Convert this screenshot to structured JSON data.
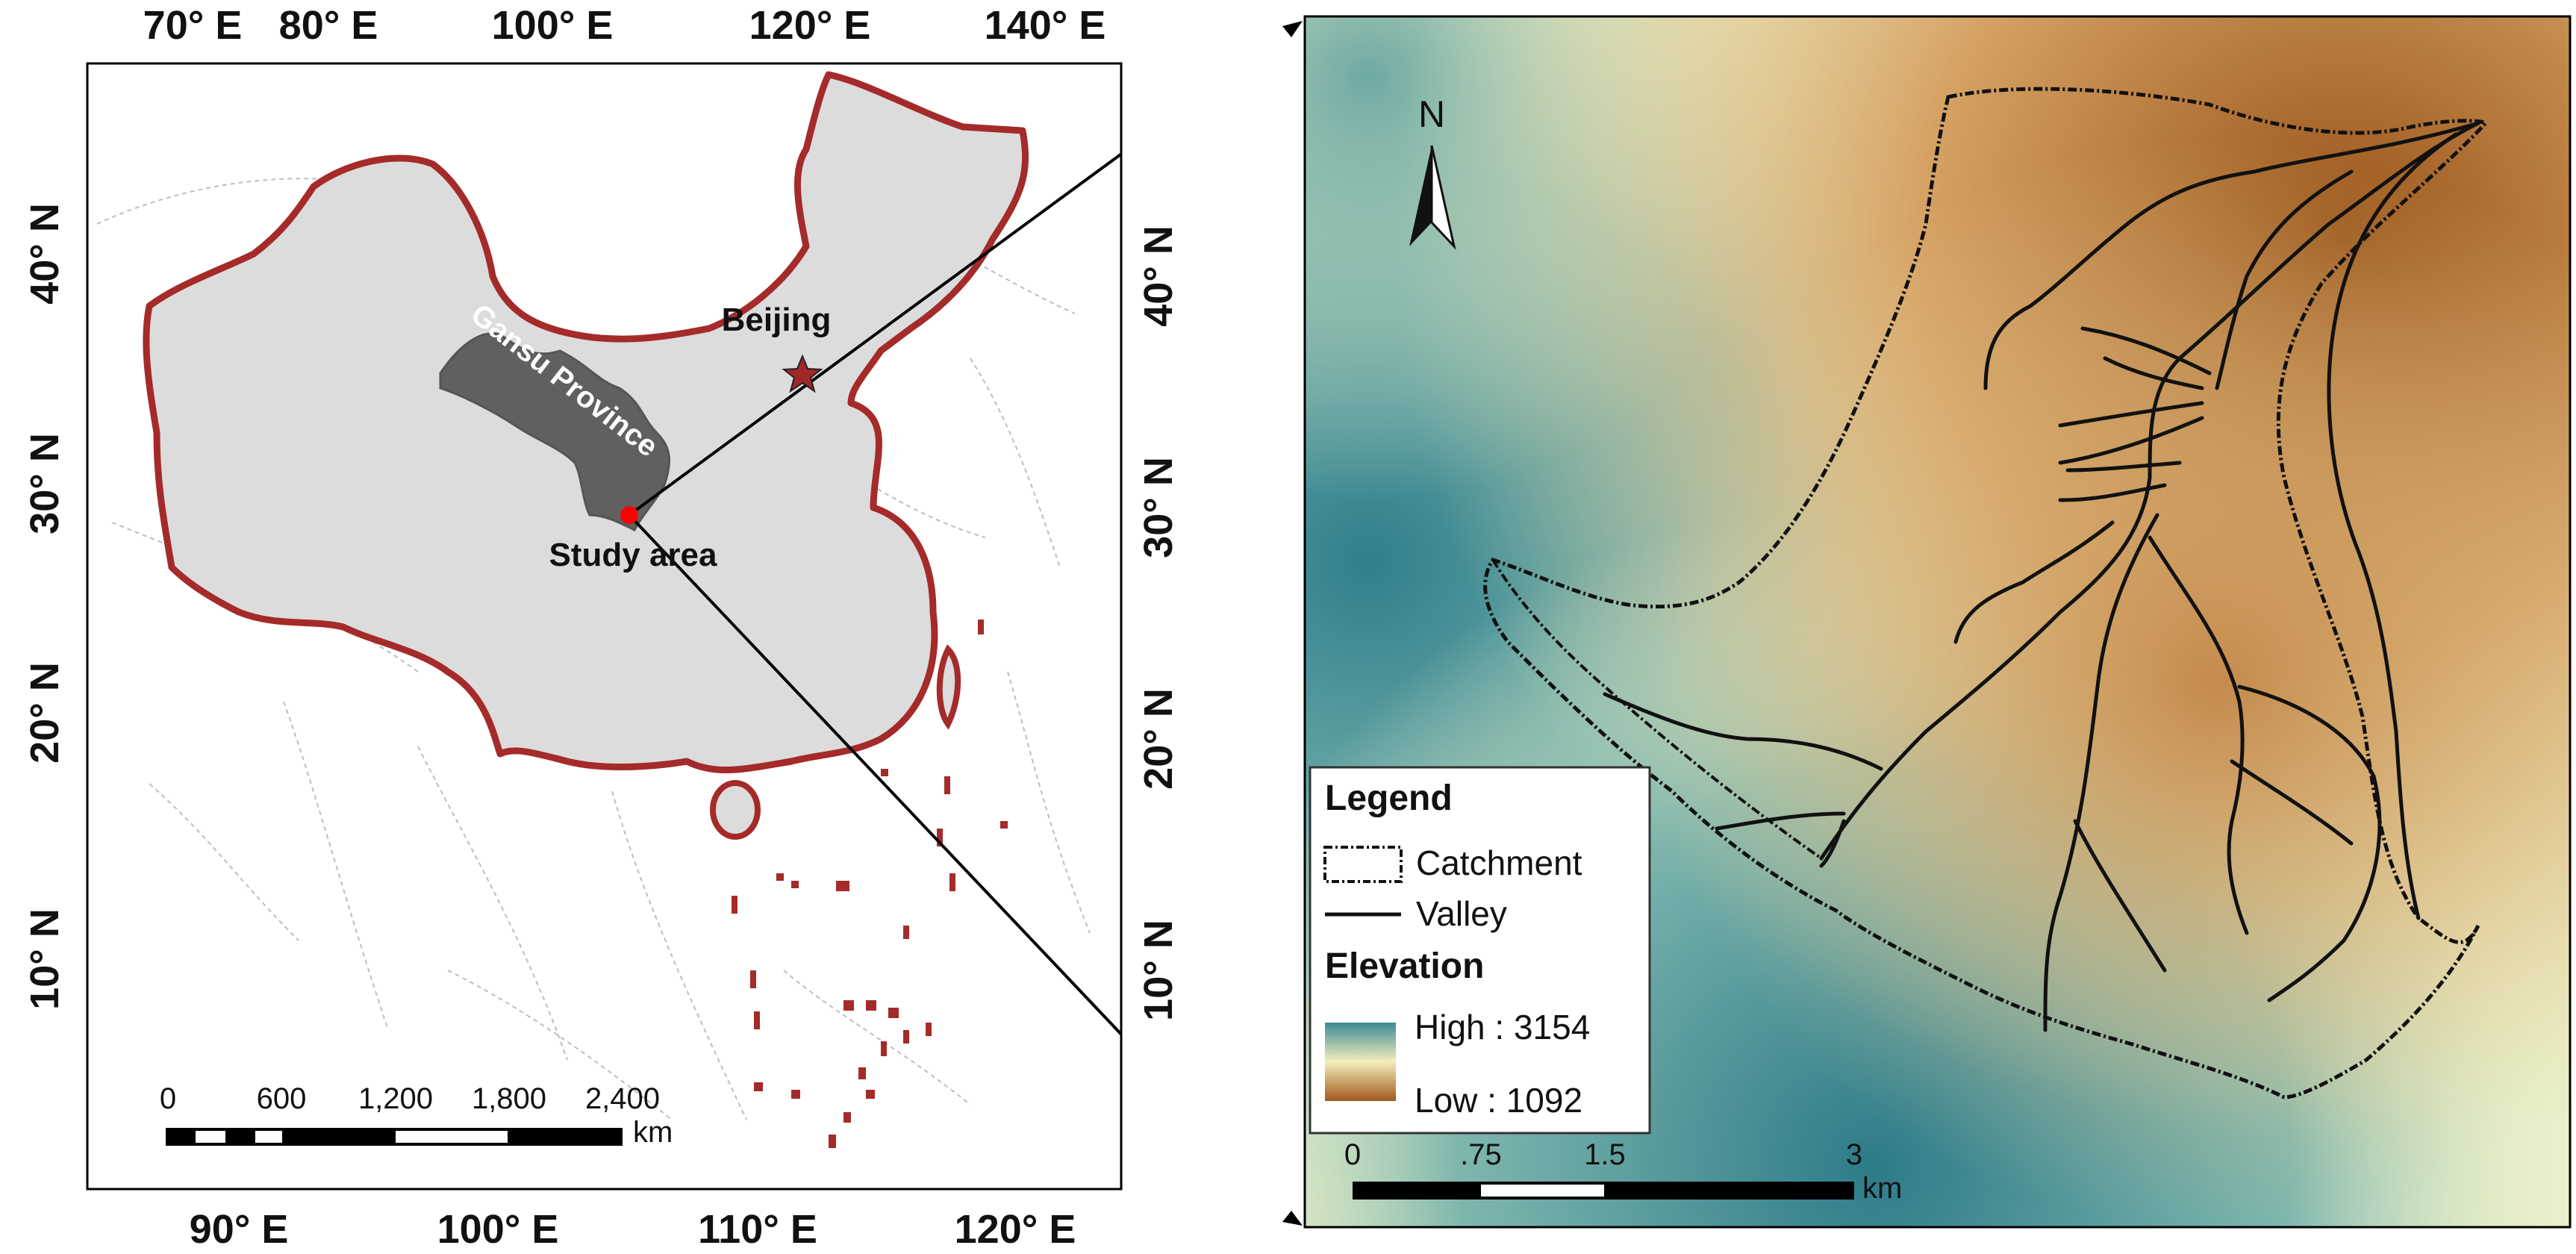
{
  "left_map": {
    "top_ticks": [
      "70° E",
      "80° E",
      "100° E",
      "120° E",
      "140° E"
    ],
    "bottom_ticks": [
      "90° E",
      "100° E",
      "110° E",
      "120° E"
    ],
    "left_ticks": [
      "40° N",
      "30° N",
      "20° N",
      "10° N"
    ],
    "right_ticks": [
      "40° N",
      "30° N",
      "20° N",
      "10° N"
    ],
    "province_label": "Gansu Province",
    "capital_label": "Beijing",
    "study_label": "Study area",
    "scale": {
      "labels": [
        "0",
        "600",
        "1,200",
        "1,800",
        "2,400"
      ],
      "unit": "km"
    }
  },
  "right_map": {
    "north_label": "N",
    "legend": {
      "title": "Legend",
      "catchment": "Catchment",
      "valley": "Valley",
      "elevation_title": "Elevation",
      "high": "High : 3154",
      "low": "Low : 1092"
    },
    "scale": {
      "labels": [
        "0",
        ".75",
        "1.5",
        "3"
      ],
      "unit": "km"
    }
  },
  "colors": {
    "china_fill": "#dcdcdc",
    "china_border": "#a52a2a",
    "gansu_fill": "#606060",
    "study_point": "#ff0000",
    "elev_high": "#3c8a96",
    "elev_mid": "#f5eebc",
    "elev_low": "#a0581c"
  }
}
